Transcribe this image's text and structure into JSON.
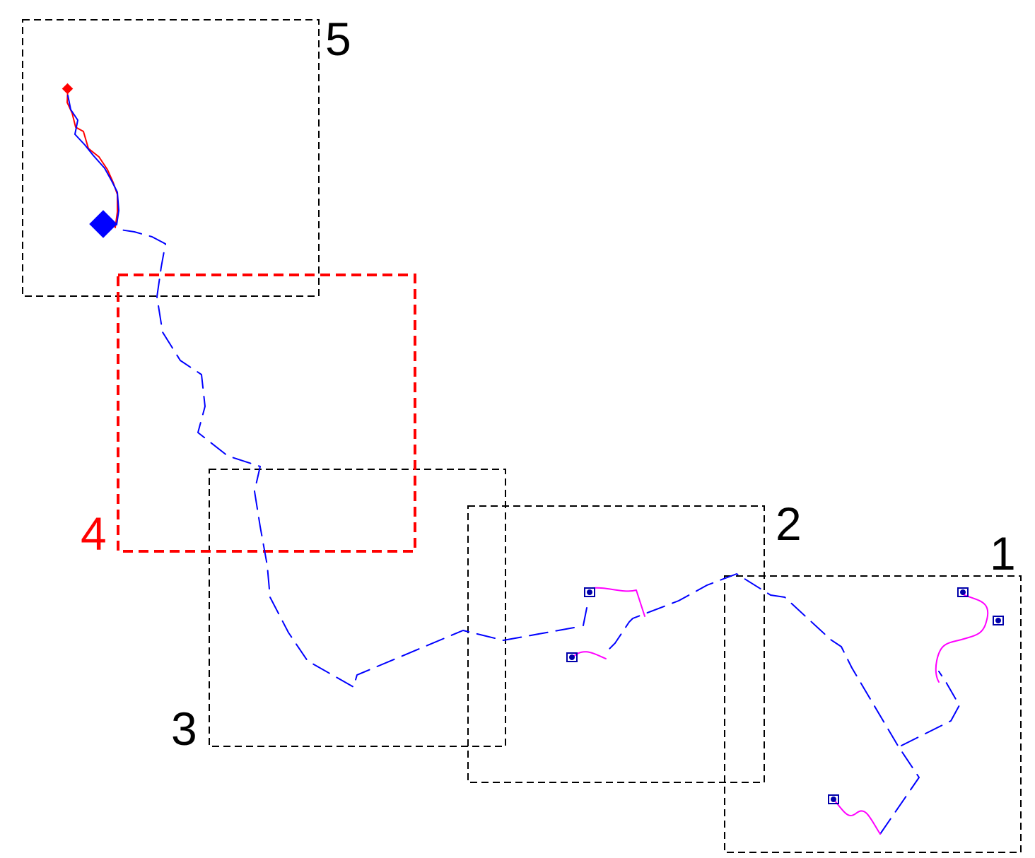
{
  "colors": {
    "region_border": "#000000",
    "highlight": "#ff0000",
    "main_path": "#0000ff",
    "local_path": "#ff00ff",
    "trace": "#ff0000",
    "marker_start": "#0000ff",
    "marker_goal": "#ff0000",
    "background": "#ffffff"
  },
  "regions": [
    {
      "id": "5",
      "label": "5",
      "highlighted": false
    },
    {
      "id": "4",
      "label": "4",
      "highlighted": true
    },
    {
      "id": "3",
      "label": "3",
      "highlighted": false
    },
    {
      "id": "2",
      "label": "2",
      "highlighted": false
    },
    {
      "id": "1",
      "label": "1",
      "highlighted": false
    }
  ],
  "icons": {
    "robot": "robot-icon",
    "start_marker": "diamond-icon",
    "goal_marker": "diamond-icon"
  }
}
